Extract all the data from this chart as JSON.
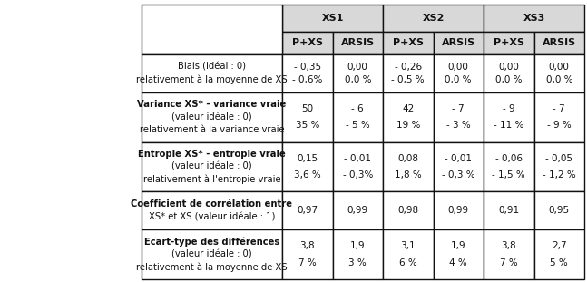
{
  "col_headers_level1": [
    "XS1",
    "XS2",
    "XS3"
  ],
  "col_headers_level2": [
    "P+XS",
    "ARSIS",
    "P+XS",
    "ARSIS",
    "P+XS",
    "ARSIS"
  ],
  "rows": [
    {
      "label": [
        "Biais (idéal : 0)",
        "relativement à la moyenne de XS"
      ],
      "values": [
        "- 0,35\n- 0,6%",
        "0,00\n0,0 %",
        "- 0,26\n- 0,5 %",
        "0,00\n0,0 %",
        "0,00\n0,0 %",
        "0,00\n0,0 %"
      ]
    },
    {
      "label": [
        "Variance XS* - variance vraie",
        "(valeur idéale : 0)",
        "relativement à la variance vraie"
      ],
      "values": [
        "50\n35 %",
        "- 6\n- 5 %",
        "42\n19 %",
        "- 7\n- 3 %",
        "- 9\n- 11 %",
        "- 7\n- 9 %"
      ]
    },
    {
      "label": [
        "Entropie XS* - entropie vraie",
        "(valeur idéale : 0)",
        "relativement à l'entropie vraie"
      ],
      "values": [
        "0,15\n3,6 %",
        "- 0,01\n- 0,3%",
        "0,08\n1,8 %",
        "- 0,01\n- 0,3 %",
        "- 0,06\n- 1,5 %",
        "- 0,05\n- 1,2 %"
      ]
    },
    {
      "label": [
        "Coefficient de corrélation entre",
        "XS* et XS (valeur idéale : 1)"
      ],
      "values": [
        "0,97",
        "0,99",
        "0,98",
        "0,99",
        "0,91",
        "0,95"
      ]
    },
    {
      "label": [
        "Ecart-type des différences",
        "(valeur idéale : 0)",
        "relativement à la moyenne de XS"
      ],
      "values": [
        "3,8\n7 %",
        "1,9\n3 %",
        "3,1\n6 %",
        "1,9\n4 %",
        "3,8\n7 %",
        "2,7\n5 %"
      ]
    }
  ],
  "line_color": "#111111",
  "text_color": "#111111",
  "header_bg": "#d8d8d8",
  "cell_bg": "#ffffff",
  "label_font": 7.2,
  "value_font": 7.5,
  "header_font": 8.0
}
